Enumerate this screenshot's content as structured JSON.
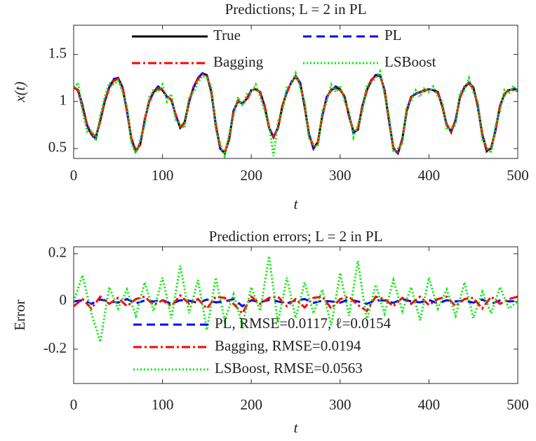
{
  "chart_data": [
    {
      "type": "line",
      "title": "Predictions; L = 2 in PL",
      "xlabel": "t",
      "ylabel": "x(t)",
      "x": [
        0,
        5,
        10,
        15,
        20,
        25,
        30,
        35,
        40,
        45,
        50,
        55,
        60,
        65,
        70,
        75,
        80,
        85,
        90,
        95,
        100,
        105,
        110,
        115,
        120,
        125,
        130,
        135,
        140,
        145,
        150,
        155,
        160,
        165,
        170,
        175,
        180,
        185,
        190,
        195,
        200,
        205,
        210,
        215,
        220,
        225,
        230,
        235,
        240,
        245,
        250,
        255,
        260,
        265,
        270,
        275,
        280,
        285,
        290,
        295,
        300,
        305,
        310,
        315,
        320,
        325,
        330,
        335,
        340,
        345,
        350,
        355,
        360,
        365,
        370,
        375,
        380,
        385,
        390,
        395,
        400,
        405,
        410,
        415,
        420,
        425,
        430,
        435,
        440,
        445,
        450,
        455,
        460,
        465,
        470,
        475,
        480,
        485,
        490,
        495,
        500
      ],
      "xlim": [
        0,
        500
      ],
      "xticks": [
        0,
        100,
        200,
        300,
        400,
        500
      ],
      "ylim": [
        0.395,
        1.81
      ],
      "yticks": [
        0.5,
        1,
        1.5
      ],
      "legend": {
        "loc": "upper center",
        "columns": 2
      },
      "series": [
        {
          "name": "True",
          "color": "#000000",
          "line_style": "solid",
          "values": [
            1.15,
            1.12,
            0.95,
            0.75,
            0.65,
            0.62,
            0.8,
            1.0,
            1.15,
            1.23,
            1.25,
            1.15,
            0.9,
            0.6,
            0.47,
            0.55,
            0.8,
            1.0,
            1.1,
            1.15,
            1.12,
            1.05,
            1.02,
            0.85,
            0.72,
            0.78,
            1.0,
            1.15,
            1.25,
            1.3,
            1.28,
            1.1,
            0.75,
            0.5,
            0.45,
            0.6,
            0.9,
            1.0,
            0.98,
            1.03,
            1.12,
            1.13,
            1.1,
            0.95,
            0.72,
            0.62,
            0.72,
            0.95,
            1.1,
            1.2,
            1.27,
            1.2,
            0.95,
            0.65,
            0.5,
            0.57,
            0.85,
            1.05,
            1.12,
            1.15,
            1.13,
            1.05,
            0.85,
            0.68,
            0.7,
            0.95,
            1.12,
            1.22,
            1.28,
            1.28,
            1.12,
            0.8,
            0.5,
            0.45,
            0.6,
            0.9,
            1.05,
            1.08,
            1.1,
            1.12,
            1.13,
            1.12,
            1.1,
            0.95,
            0.75,
            0.68,
            0.8,
            1.05,
            1.15,
            1.2,
            1.15,
            0.95,
            0.65,
            0.48,
            0.5,
            0.7,
            0.95,
            1.08,
            1.12,
            1.13,
            1.12
          ]
        },
        {
          "name": "PL",
          "color": "#0000ff",
          "line_style": "dashed",
          "values": [
            1.15,
            1.12,
            0.96,
            0.75,
            0.64,
            0.61,
            0.8,
            1.0,
            1.15,
            1.24,
            1.25,
            1.15,
            0.9,
            0.6,
            0.47,
            0.55,
            0.8,
            1.0,
            1.1,
            1.16,
            1.13,
            1.05,
            1.02,
            0.85,
            0.72,
            0.78,
            1.0,
            1.15,
            1.25,
            1.3,
            1.28,
            1.1,
            0.75,
            0.5,
            0.45,
            0.6,
            0.9,
            1.0,
            0.98,
            1.03,
            1.12,
            1.13,
            1.1,
            0.95,
            0.72,
            0.62,
            0.72,
            0.95,
            1.1,
            1.2,
            1.27,
            1.2,
            0.95,
            0.65,
            0.5,
            0.57,
            0.85,
            1.05,
            1.12,
            1.16,
            1.13,
            1.05,
            0.85,
            0.67,
            0.7,
            0.95,
            1.12,
            1.22,
            1.28,
            1.28,
            1.12,
            0.8,
            0.5,
            0.45,
            0.6,
            0.9,
            1.05,
            1.08,
            1.1,
            1.12,
            1.13,
            1.12,
            1.1,
            0.95,
            0.75,
            0.68,
            0.8,
            1.05,
            1.15,
            1.2,
            1.15,
            0.95,
            0.65,
            0.47,
            0.5,
            0.7,
            0.95,
            1.08,
            1.12,
            1.14,
            1.12
          ]
        },
        {
          "name": "Bagging",
          "color": "#ff0000",
          "line_style": "dashdot",
          "values": [
            1.16,
            1.11,
            0.93,
            0.76,
            0.66,
            0.63,
            0.79,
            1.01,
            1.14,
            1.22,
            1.24,
            1.16,
            0.91,
            0.61,
            0.48,
            0.54,
            0.81,
            1.0,
            1.09,
            1.14,
            1.12,
            1.06,
            1.01,
            0.86,
            0.73,
            0.77,
            0.99,
            1.16,
            1.24,
            1.29,
            1.27,
            1.11,
            0.76,
            0.51,
            0.46,
            0.59,
            0.89,
            1.01,
            0.98,
            1.02,
            1.11,
            1.14,
            1.09,
            0.96,
            0.73,
            0.63,
            0.71,
            0.96,
            1.09,
            1.21,
            1.26,
            1.19,
            0.96,
            0.66,
            0.51,
            0.56,
            0.86,
            1.04,
            1.13,
            1.14,
            1.12,
            1.06,
            0.84,
            0.69,
            0.71,
            0.94,
            1.11,
            1.23,
            1.27,
            1.27,
            1.13,
            0.81,
            0.51,
            0.46,
            0.59,
            0.91,
            1.04,
            1.09,
            1.1,
            1.11,
            1.14,
            1.11,
            1.09,
            0.96,
            0.76,
            0.67,
            0.81,
            1.04,
            1.16,
            1.19,
            1.14,
            0.96,
            0.66,
            0.49,
            0.51,
            0.69,
            0.96,
            1.07,
            1.13,
            1.12,
            1.11
          ]
        },
        {
          "name": "LSBoost",
          "color": "#00ee00",
          "line_style": "dotted",
          "values": [
            1.15,
            1.2,
            0.9,
            0.68,
            0.7,
            0.58,
            0.85,
            1.05,
            1.2,
            1.18,
            1.22,
            1.1,
            0.95,
            0.55,
            0.45,
            0.6,
            0.75,
            1.05,
            1.12,
            1.1,
            1.18,
            1.0,
            1.08,
            0.8,
            0.75,
            0.72,
            1.05,
            1.1,
            1.2,
            1.27,
            1.25,
            1.15,
            0.7,
            0.55,
            0.42,
            0.65,
            0.85,
            1.05,
            0.95,
            1.08,
            1.1,
            1.18,
            1.05,
            0.9,
            0.75,
            0.42,
            0.78,
            0.9,
            1.15,
            1.18,
            1.3,
            1.15,
            1.0,
            0.6,
            0.55,
            0.52,
            0.9,
            1.0,
            1.18,
            1.1,
            1.17,
            1.0,
            0.9,
            0.62,
            0.75,
            0.9,
            1.18,
            1.2,
            1.25,
            1.32,
            1.08,
            0.85,
            0.46,
            0.5,
            0.55,
            0.95,
            1.0,
            1.12,
            1.05,
            1.15,
            1.1,
            1.16,
            1.05,
            1.0,
            0.7,
            0.72,
            0.75,
            1.1,
            1.12,
            1.25,
            1.1,
            1.0,
            0.6,
            0.52,
            0.45,
            0.75,
            0.9,
            1.12,
            1.08,
            1.17,
            1.1
          ]
        }
      ]
    },
    {
      "type": "line",
      "title": "Prediction errors; L = 2 in PL",
      "xlabel": "t",
      "ylabel": "Error",
      "x": [
        0,
        10,
        20,
        30,
        40,
        50,
        60,
        70,
        80,
        90,
        100,
        110,
        120,
        130,
        140,
        150,
        160,
        170,
        180,
        190,
        200,
        210,
        220,
        230,
        240,
        250,
        260,
        270,
        280,
        290,
        300,
        310,
        320,
        330,
        340,
        350,
        360,
        370,
        380,
        390,
        400,
        410,
        420,
        430,
        440,
        450,
        460,
        470,
        480,
        490,
        500
      ],
      "xlim": [
        0,
        500
      ],
      "xticks": [
        0,
        100,
        200,
        300,
        400,
        500
      ],
      "ylim": [
        -0.344,
        0.229
      ],
      "yticks": [
        -0.2,
        0,
        0.2
      ],
      "legend": {
        "loc": "lower center",
        "columns": 1
      },
      "series": [
        {
          "name": "PL, RMSE=0.0117, ℓ=0.0154",
          "color": "#0000ff",
          "line_style": "dashed",
          "values": [
            0,
            0.005,
            -0.01,
            0.008,
            0,
            -0.005,
            0.01,
            -0.008,
            0.004,
            0,
            0.006,
            -0.01,
            0.005,
            0.003,
            -0.006,
            0.008,
            -0.004,
            0,
            0.01,
            -0.02,
            0.005,
            -0.003,
            0.006,
            0,
            -0.008,
            0.004,
            0.01,
            -0.006,
            0.003,
            0,
            -0.005,
            0.008,
            0,
            -0.01,
            0.005,
            0.004,
            -0.006,
            0.01,
            0,
            -0.004,
            0.006,
            -0.008,
            0.005,
            0,
            0.003,
            -0.005,
            0.008,
            -0.01,
            0.004,
            0,
            0.002
          ]
        },
        {
          "name": "Bagging, RMSE=0.0194",
          "color": "#ff0000",
          "line_style": "dashdot",
          "values": [
            -0.02,
            0.01,
            -0.03,
            0.02,
            -0.01,
            0.015,
            -0.02,
            0.01,
            0.02,
            -0.015,
            0.005,
            -0.02,
            0.025,
            -0.01,
            0.01,
            -0.03,
            0.02,
            0.015,
            -0.01,
            -0.05,
            0.02,
            -0.01,
            0.015,
            0.02,
            -0.02,
            0.01,
            -0.025,
            0.015,
            0.02,
            -0.03,
            0.01,
            0.02,
            -0.015,
            -0.04,
            0.02,
            0.01,
            -0.02,
            0.015,
            -0.01,
            0.02,
            -0.015,
            0.01,
            0.02,
            -0.02,
            0.01,
            0.015,
            -0.03,
            0.02,
            -0.01,
            0.01,
            0.02
          ]
        },
        {
          "name": "LSBoost, RMSE=0.0563",
          "color": "#00ee00",
          "line_style": "dotted",
          "values": [
            0,
            0.11,
            -0.05,
            -0.17,
            0.06,
            -0.03,
            0.05,
            -0.06,
            0.08,
            -0.04,
            0.1,
            -0.07,
            0.15,
            -0.05,
            0.09,
            -0.12,
            0.1,
            -0.08,
            0.03,
            -0.1,
            0.06,
            -0.04,
            0.19,
            -0.09,
            0.1,
            -0.07,
            0.08,
            -0.05,
            0.05,
            -0.1,
            0.12,
            -0.06,
            0.17,
            -0.08,
            0.07,
            -0.05,
            0.09,
            -0.04,
            0.06,
            -0.08,
            0.1,
            -0.03,
            0.05,
            -0.06,
            0.08,
            -0.07,
            0.04,
            -0.05,
            0.06,
            -0.03,
            0
          ]
        }
      ]
    }
  ]
}
